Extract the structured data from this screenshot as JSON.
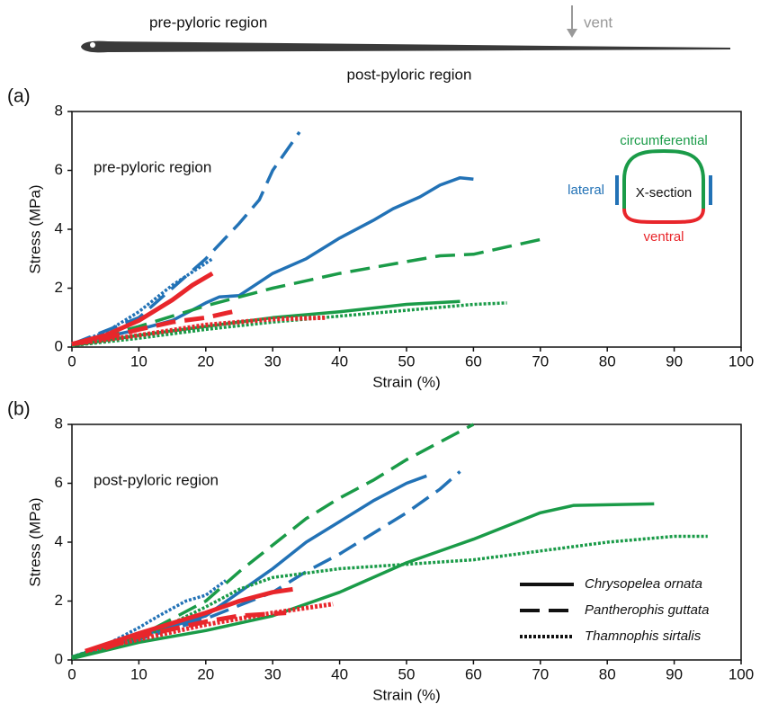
{
  "header": {
    "top_label": "pre-pyloric region",
    "vent_label": "vent",
    "bottom_label": "post-pyloric region"
  },
  "chart_data": [
    {
      "type": "line",
      "panel": "(a)",
      "annotation": "pre-pyloric region",
      "xlabel": "Strain (%)",
      "ylabel": "Stress (MPa)",
      "xlim": [
        0,
        100
      ],
      "ylim": [
        0,
        8
      ],
      "xticks": [
        0,
        10,
        20,
        30,
        40,
        50,
        60,
        70,
        80,
        90,
        100
      ],
      "yticks": [
        0,
        2,
        4,
        6,
        8
      ],
      "grid": false,
      "inset": {
        "title": "X-section",
        "top": "circumferential",
        "side": "lateral",
        "bottom": "ventral"
      },
      "series": [
        {
          "color": "#2272b6",
          "dash": "solid",
          "x": [
            0,
            10,
            15,
            20,
            22,
            25,
            28,
            30,
            35,
            40,
            45,
            48,
            52,
            55,
            58,
            60
          ],
          "values": [
            0.1,
            0.6,
            0.9,
            1.5,
            1.7,
            1.75,
            2.2,
            2.5,
            3,
            3.7,
            4.3,
            4.7,
            5.1,
            5.5,
            5.75,
            5.7
          ]
        },
        {
          "color": "#2272b6",
          "dash": "dashed",
          "x": [
            0,
            10,
            15,
            20,
            25,
            28,
            30,
            34
          ],
          "values": [
            0.1,
            1,
            2,
            3,
            4.2,
            5,
            6,
            7.3
          ]
        },
        {
          "color": "#2272b6",
          "dash": "dotted",
          "x": [
            0,
            5,
            10,
            15,
            19,
            21
          ],
          "values": [
            0.1,
            0.5,
            1.2,
            2.1,
            2.7,
            3
          ]
        },
        {
          "color": "#1a9b48",
          "dash": "solid",
          "x": [
            0,
            10,
            20,
            30,
            40,
            50,
            58
          ],
          "values": [
            0.05,
            0.4,
            0.7,
            1,
            1.2,
            1.45,
            1.55
          ]
        },
        {
          "color": "#1a9b48",
          "dash": "dashed",
          "x": [
            0,
            10,
            20,
            25,
            30,
            40,
            50,
            55,
            60,
            65,
            71
          ],
          "values": [
            0.1,
            0.7,
            1.4,
            1.7,
            2,
            2.5,
            2.9,
            3.1,
            3.15,
            3.4,
            3.7
          ]
        },
        {
          "color": "#1a9b48",
          "dash": "dotted",
          "x": [
            0,
            10,
            20,
            30,
            40,
            50,
            60,
            65
          ],
          "values": [
            0.05,
            0.3,
            0.6,
            0.85,
            1.05,
            1.25,
            1.45,
            1.5
          ]
        },
        {
          "color": "#e8262b",
          "dash": "solid",
          "x": [
            0,
            5,
            10,
            15,
            18,
            21
          ],
          "values": [
            0.1,
            0.4,
            0.9,
            1.6,
            2.1,
            2.5
          ]
        },
        {
          "color": "#e8262b",
          "dash": "dashed",
          "x": [
            0,
            5,
            10,
            15,
            20,
            24
          ],
          "values": [
            0.1,
            0.3,
            0.6,
            0.85,
            1,
            1.2
          ]
        },
        {
          "color": "#e8262b",
          "dash": "dotted",
          "x": [
            0,
            10,
            20,
            30,
            38
          ],
          "values": [
            0.1,
            0.4,
            0.75,
            0.95,
            1
          ]
        }
      ]
    },
    {
      "type": "line",
      "panel": "(b)",
      "annotation": "post-pyloric region",
      "xlabel": "Strain (%)",
      "ylabel": "Stress (MPa)",
      "xlim": [
        0,
        100
      ],
      "ylim": [
        0,
        8
      ],
      "xticks": [
        0,
        10,
        20,
        30,
        40,
        50,
        60,
        70,
        80,
        90,
        100
      ],
      "yticks": [
        0,
        2,
        4,
        6,
        8
      ],
      "grid": false,
      "legend": {
        "position": "lower right",
        "entries": [
          {
            "label": "Chrysopelea ornata",
            "dash": "solid"
          },
          {
            "label": "Pantherophis guttata",
            "dash": "dashed"
          },
          {
            "label": "Thamnophis sirtalis",
            "dash": "dotted"
          }
        ]
      },
      "series": [
        {
          "color": "#2272b6",
          "dash": "solid",
          "x": [
            0,
            10,
            20,
            25,
            30,
            35,
            40,
            45,
            50,
            53
          ],
          "values": [
            0.1,
            0.8,
            1.5,
            2.3,
            3.1,
            4,
            4.7,
            5.4,
            6,
            6.25
          ]
        },
        {
          "color": "#2272b6",
          "dash": "dashed",
          "x": [
            0,
            10,
            20,
            30,
            35,
            40,
            45,
            50,
            55,
            58
          ],
          "values": [
            0.1,
            0.7,
            1.4,
            2.3,
            3,
            3.6,
            4.3,
            5,
            5.8,
            6.4
          ]
        },
        {
          "color": "#2272b6",
          "dash": "dotted",
          "x": [
            0,
            5,
            10,
            13,
            17,
            20,
            23
          ],
          "values": [
            0.1,
            0.5,
            1.1,
            1.5,
            2,
            2.2,
            2.7
          ]
        },
        {
          "color": "#1a9b48",
          "dash": "solid",
          "x": [
            0,
            10,
            20,
            30,
            40,
            50,
            60,
            70,
            75,
            87
          ],
          "values": [
            0.05,
            0.6,
            1,
            1.5,
            2.3,
            3.3,
            4.1,
            5,
            5.25,
            5.3
          ]
        },
        {
          "color": "#1a9b48",
          "dash": "dashed",
          "x": [
            0,
            10,
            20,
            25,
            30,
            35,
            40,
            45,
            50,
            55,
            60
          ],
          "values": [
            0.1,
            0.8,
            2,
            3,
            3.9,
            4.8,
            5.5,
            6.1,
            6.8,
            7.4,
            8
          ]
        },
        {
          "color": "#1a9b48",
          "dash": "dotted",
          "x": [
            0,
            10,
            20,
            25,
            30,
            40,
            50,
            60,
            70,
            80,
            90,
            95
          ],
          "values": [
            0.1,
            0.7,
            1.8,
            2.4,
            2.8,
            3.1,
            3.25,
            3.4,
            3.7,
            4,
            4.2,
            4.2
          ]
        },
        {
          "color": "#e8262b",
          "dash": "solid",
          "x": [
            2,
            10,
            20,
            25,
            30,
            33
          ],
          "values": [
            0.3,
            0.9,
            1.6,
            2,
            2.3,
            2.4
          ]
        },
        {
          "color": "#e8262b",
          "dash": "dashed",
          "x": [
            5,
            10,
            20,
            25,
            32
          ],
          "values": [
            0.4,
            0.8,
            1.3,
            1.5,
            1.6
          ]
        },
        {
          "color": "#e8262b",
          "dash": "dotted",
          "x": [
            2,
            10,
            20,
            30,
            39
          ],
          "values": [
            0.3,
            0.7,
            1.2,
            1.6,
            1.9
          ]
        }
      ]
    }
  ]
}
